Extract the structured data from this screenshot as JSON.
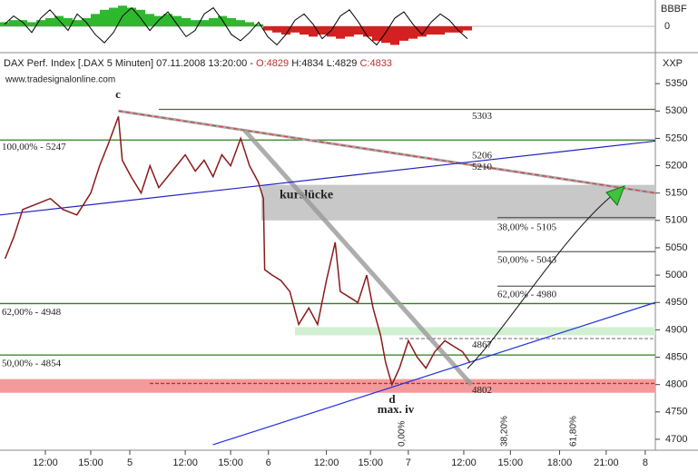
{
  "header": {
    "title": "DAX Perf. Index [.DAX  5 Minuten] 07.11.2008 13:20:00 - ",
    "open": "O:4829",
    "high": "H:4834",
    "low": "L:4829",
    "close": "C:4833",
    "source": "www.tradesignalonline.com"
  },
  "chart_data": [
    {
      "type": "oscillator",
      "y_axis_label": "BBBF",
      "ylim": [
        -1.1,
        1.1
      ],
      "yticks": [
        0
      ],
      "up_color": "#2eb82e",
      "down_color": "#d42020",
      "line_color": "#000000",
      "values": [
        0.2,
        0.3,
        0.3,
        0.2,
        0.3,
        0.4,
        0.5,
        0.4,
        0.3,
        0.4,
        0.6,
        0.8,
        0.9,
        1.0,
        0.9,
        0.8,
        0.6,
        0.5,
        0.6,
        0.5,
        0.4,
        0.3,
        0.3,
        0.4,
        0.5,
        0.4,
        0.3,
        0.2,
        0.1,
        -0.2,
        -0.3,
        -0.4,
        -0.3,
        -0.4,
        -0.5,
        -0.4,
        -0.5,
        -0.6,
        -0.5,
        -0.4,
        -0.5,
        -0.7,
        -0.8,
        -0.9,
        -0.7,
        -0.6,
        -0.5,
        -0.4,
        -0.4,
        -0.3,
        -0.3,
        -0.2
      ],
      "line_values": [
        0.1,
        0.5,
        0.2,
        -0.3,
        0.4,
        0.8,
        0.3,
        -0.2,
        0.6,
        0.2,
        -0.4,
        -0.8,
        -0.3,
        0.5,
        0.9,
        0.4,
        -0.2,
        0.3,
        0.7,
        0.1,
        -0.5,
        -0.2,
        0.6,
        0.9,
        0.3,
        -0.4,
        -0.7,
        -0.3,
        0.2,
        -0.5,
        -0.9,
        -0.4,
        0.3,
        0.6,
        0.1,
        -0.6,
        -0.2,
        0.5,
        0.8,
        0.2,
        -0.5,
        -0.9,
        -0.3,
        0.4,
        0.7,
        0.1,
        -0.4,
        0.2,
        0.6,
        0.3,
        -0.2,
        -0.6
      ]
    },
    {
      "type": "line",
      "y_axis_label": "XXP",
      "color": "#8b1a1a",
      "x": [
        4,
        11,
        18,
        29,
        40,
        50,
        61,
        72,
        79,
        86,
        94,
        97,
        104,
        112,
        119,
        126,
        133,
        140,
        147,
        155,
        162,
        169,
        176,
        183,
        191,
        198,
        205,
        209,
        210,
        216,
        223,
        230,
        237,
        245,
        252,
        259,
        266,
        270,
        277,
        284,
        291,
        296,
        302,
        306,
        311,
        317,
        324,
        331,
        338,
        345,
        353,
        360,
        367,
        373
      ],
      "values": [
        5030,
        5070,
        5120,
        5130,
        5140,
        5120,
        5110,
        5150,
        5200,
        5240,
        5290,
        5210,
        5180,
        5150,
        5200,
        5160,
        5180,
        5200,
        5220,
        5190,
        5210,
        5180,
        5220,
        5200,
        5250,
        5200,
        5170,
        5140,
        5010,
        5000,
        4990,
        4970,
        4910,
        4940,
        4910,
        4990,
        5060,
        4970,
        4960,
        4950,
        5000,
        4940,
        4890,
        4840,
        4800,
        4830,
        4880,
        4850,
        4830,
        4860,
        4880,
        4870,
        4860,
        4840
      ],
      "xlim": [
        0,
        520
      ],
      "ylim": [
        4680,
        5400
      ],
      "yticks": [
        4700,
        4750,
        4800,
        4850,
        4900,
        4950,
        5000,
        5050,
        5100,
        5150,
        5200,
        5250,
        5300,
        5350
      ],
      "xticks": [
        {
          "value": 36,
          "label": "12:00"
        },
        {
          "value": 72,
          "label": "15:00"
        },
        {
          "value": 103,
          "label": "5"
        },
        {
          "value": 147,
          "label": "12:00"
        },
        {
          "value": 183,
          "label": "15:00"
        },
        {
          "value": 213,
          "label": "6"
        },
        {
          "value": 259,
          "label": "12:00"
        },
        {
          "value": 294,
          "label": "15:00"
        },
        {
          "value": 324,
          "label": "7"
        },
        {
          "value": 368,
          "label": "12:00"
        },
        {
          "value": 405,
          "label": "15:00"
        },
        {
          "value": 444,
          "label": "18:00"
        },
        {
          "value": 481,
          "label": "21:00"
        },
        {
          "value": 512,
          "label": "8"
        }
      ],
      "bands": [
        {
          "from": 5100,
          "to": 5165,
          "color": "#c8c8c8",
          "label": "kurslücke"
        },
        {
          "from": 4890,
          "to": 4905,
          "color": "#d2efd2"
        },
        {
          "from": 4785,
          "to": 4810,
          "color": "#f49a9a"
        }
      ],
      "levels": [
        {
          "value": 5303,
          "color": "#2e7d1e"
        },
        {
          "value": 5247,
          "color": "#2e7d1e",
          "label": "100,00% - 5247"
        },
        {
          "value": 4948,
          "color": "#2e7d1e",
          "label": "62,00% - 4948"
        },
        {
          "value": 4854,
          "color": "#2e7d1e",
          "label": "50,00% - 4854"
        },
        {
          "value": 5105,
          "color": "#222222",
          "label": "38,00% - 5105"
        },
        {
          "value": 5043,
          "color": "#222222",
          "label": "50,00% - 5043"
        },
        {
          "value": 4980,
          "color": "#222222",
          "label": "62,00% - 4980"
        },
        {
          "value": 4802,
          "color": "#c03030",
          "dashed": true
        },
        {
          "value": 4884,
          "color": "#888888",
          "dashed": true
        }
      ],
      "price_labels": [
        {
          "value": 5206,
          "color": "#c03030"
        },
        {
          "value": 5210,
          "color": "#2020c0"
        },
        {
          "value": 4867,
          "color": "#2e7d1e"
        }
      ],
      "trendlines": [
        {
          "from": [
            94,
            5300
          ],
          "to": [
            520,
            5150
          ],
          "color": "#d04040"
        },
        {
          "from": [
            194,
            5265
          ],
          "to": [
            374,
            4800
          ],
          "color": "#999999"
        },
        {
          "from": [
            0,
            5110
          ],
          "to": [
            520,
            5245
          ],
          "color": "#2020c0"
        },
        {
          "from": [
            169,
            4690
          ],
          "to": [
            520,
            4950
          ],
          "color": "#2030e0"
        }
      ],
      "wave_labels": [
        "c",
        "d",
        "max. iv"
      ],
      "fib_labels": [
        "0,00%",
        "38,20%",
        "61,80%"
      ]
    }
  ]
}
